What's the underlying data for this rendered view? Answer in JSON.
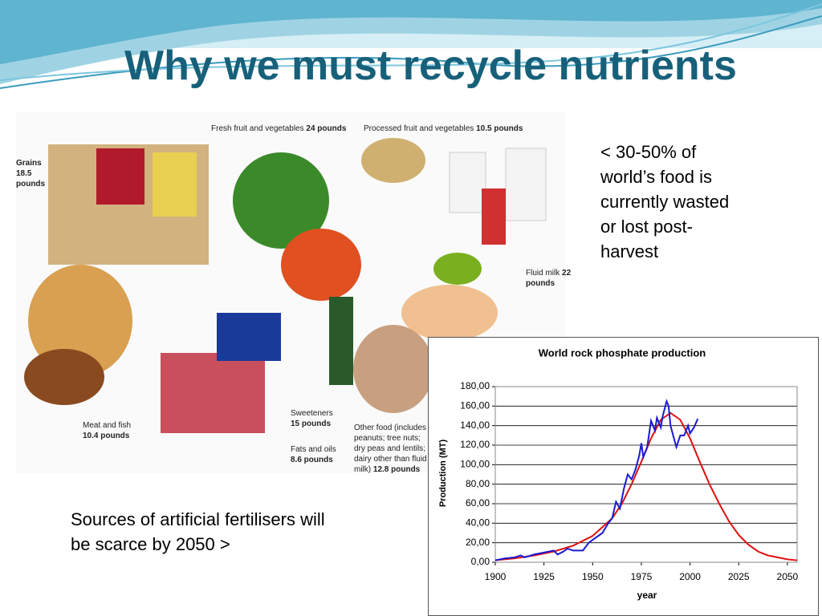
{
  "slide": {
    "title": "Why we must recycle nutrients",
    "right_text": [
      "< 30-50% of",
      "world’s food is",
      "currently wasted",
      "or lost post-",
      "harvest"
    ],
    "left_text": [
      "Sources of artificial fertilisers will",
      "be scarce by 2050 >"
    ]
  },
  "photo": {
    "labels": [
      {
        "name": "Grains",
        "amount": "18.5 pounds"
      },
      {
        "name": "Fresh fruit and vegetables",
        "amount": "24 pounds"
      },
      {
        "name": "Processed fruit and vegetables",
        "amount": "10.5 pounds"
      },
      {
        "name": "Fluid milk",
        "amount": "22 pounds"
      },
      {
        "name": "Meat and fish",
        "amount": "10.4 pounds"
      },
      {
        "name": "Sweeteners",
        "amount": "15 pounds"
      },
      {
        "name": "Fats and oils",
        "amount": "8.6 pounds"
      },
      {
        "name": "Other food (includes peanuts; tree nuts; dry peas and lentils; dairy other than fluid milk)",
        "amount": "12.8 pounds"
      }
    ]
  },
  "chart_data": {
    "type": "line",
    "title": "World rock phosphate production",
    "x_label": "year",
    "y_label": "Production (MT)",
    "xlim": [
      1900,
      2055
    ],
    "ylim": [
      0,
      180
    ],
    "xticks": [
      1900,
      1925,
      1950,
      1975,
      2000,
      2025,
      2050
    ],
    "yticks": [
      {
        "value": 0,
        "label": "0,00"
      },
      {
        "value": 20,
        "label": "20,00"
      },
      {
        "value": 40,
        "label": "40,00"
      },
      {
        "value": 60,
        "label": "60,00"
      },
      {
        "value": 80,
        "label": "80,00"
      },
      {
        "value": 100,
        "label": "100,00"
      },
      {
        "value": 120,
        "label": "120,00"
      },
      {
        "value": 140,
        "label": "140,00"
      },
      {
        "value": 160,
        "label": "160,00"
      },
      {
        "value": 180,
        "label": "180,00"
      }
    ],
    "grid": true,
    "series": [
      {
        "color": "#e01010",
        "x": [
          1900,
          1910,
          1920,
          1930,
          1940,
          1950,
          1960,
          1965,
          1970,
          1975,
          1980,
          1985,
          1990,
          1995,
          2000,
          2005,
          2010,
          2015,
          2020,
          2025,
          2030,
          2035,
          2040,
          2045,
          2050,
          2055
        ],
        "values": [
          2,
          4,
          7,
          11,
          17,
          27,
          45,
          60,
          80,
          103,
          127,
          146,
          153,
          146,
          127,
          103,
          80,
          60,
          42,
          28,
          18,
          11,
          7,
          5,
          3,
          2
        ]
      },
      {
        "color": "#1a1ad0",
        "x": [
          1900,
          1905,
          1910,
          1913,
          1915,
          1920,
          1925,
          1930,
          1932,
          1935,
          1937,
          1940,
          1945,
          1948,
          1950,
          1955,
          1958,
          1960,
          1962,
          1964,
          1966,
          1968,
          1970,
          1972,
          1974,
          1975,
          1976,
          1978,
          1980,
          1982,
          1983,
          1985,
          1986,
          1988,
          1989,
          1990,
          1992,
          1993,
          1995,
          1997,
          1999,
          2000,
          2002,
          2004
        ],
        "values": [
          2,
          4,
          5,
          7,
          5,
          8,
          10,
          12,
          8,
          11,
          14,
          12,
          12,
          20,
          23,
          30,
          40,
          45,
          62,
          55,
          75,
          90,
          85,
          95,
          110,
          122,
          108,
          118,
          145,
          135,
          148,
          138,
          150,
          165,
          160,
          140,
          125,
          118,
          130,
          130,
          140,
          132,
          138,
          147
        ]
      }
    ]
  }
}
